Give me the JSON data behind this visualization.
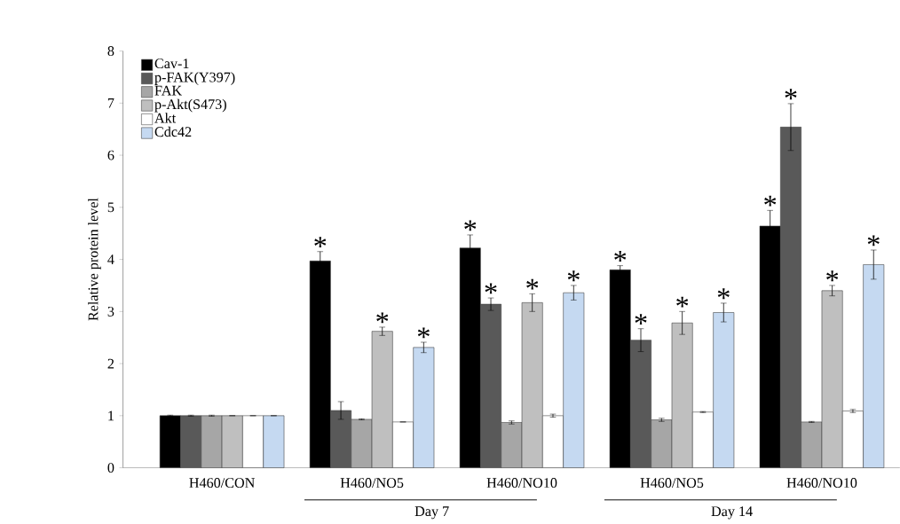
{
  "chart_data": {
    "type": "bar",
    "ylabel": "Relative protein level",
    "categories": [
      "H460/CON",
      "H460/NO5",
      "H460/NO10",
      "H460/NO5",
      "H460/NO10"
    ],
    "ylim": [
      0,
      8
    ],
    "yticks": [
      0,
      1,
      2,
      3,
      4,
      5,
      6,
      7,
      8
    ],
    "legend": "top left",
    "grid": false,
    "annotations": [
      "Day 7",
      "Day 14"
    ],
    "series": [
      {
        "name": "Cav-1",
        "color": "#000000",
        "values": [
          1.0,
          3.97,
          4.22,
          3.8,
          4.64
        ],
        "errors": [
          0.01,
          0.18,
          0.25,
          0.08,
          0.3
        ],
        "value_labels": [
          null,
          "*",
          "*",
          "*",
          "*"
        ]
      },
      {
        "name": "p-FAK(Y397)",
        "color": "#595959",
        "values": [
          1.0,
          1.1,
          3.14,
          2.45,
          6.54
        ],
        "errors": [
          0.01,
          0.17,
          0.12,
          0.22,
          0.45
        ],
        "value_labels": [
          null,
          null,
          "*",
          "*",
          "*"
        ]
      },
      {
        "name": "FAK",
        "color": "#a6a6a6",
        "values": [
          1.0,
          0.93,
          0.87,
          0.92,
          0.88
        ],
        "errors": [
          0.01,
          0.01,
          0.03,
          0.03,
          0.01
        ],
        "value_labels": [
          null,
          null,
          null,
          null,
          null
        ]
      },
      {
        "name": "p-Akt(S473)",
        "color": "#bfbfbf",
        "values": [
          1.0,
          2.62,
          3.17,
          2.78,
          3.4
        ],
        "errors": [
          0.0,
          0.08,
          0.17,
          0.22,
          0.1
        ],
        "value_labels": [
          null,
          "*",
          "*",
          "*",
          "*"
        ]
      },
      {
        "name": "Akt",
        "color": "#ffffff",
        "values": [
          1.0,
          0.88,
          1.0,
          1.07,
          1.09
        ],
        "errors": [
          0.0,
          0.0,
          0.03,
          0.01,
          0.03
        ],
        "value_labels": [
          null,
          null,
          null,
          null,
          null
        ]
      },
      {
        "name": "Cdc42",
        "color": "#c5d9f1",
        "values": [
          1.0,
          2.31,
          3.36,
          2.98,
          3.9
        ],
        "errors": [
          0.0,
          0.1,
          0.14,
          0.18,
          0.28
        ],
        "value_labels": [
          null,
          "*",
          "*",
          "*",
          "*"
        ]
      }
    ]
  }
}
